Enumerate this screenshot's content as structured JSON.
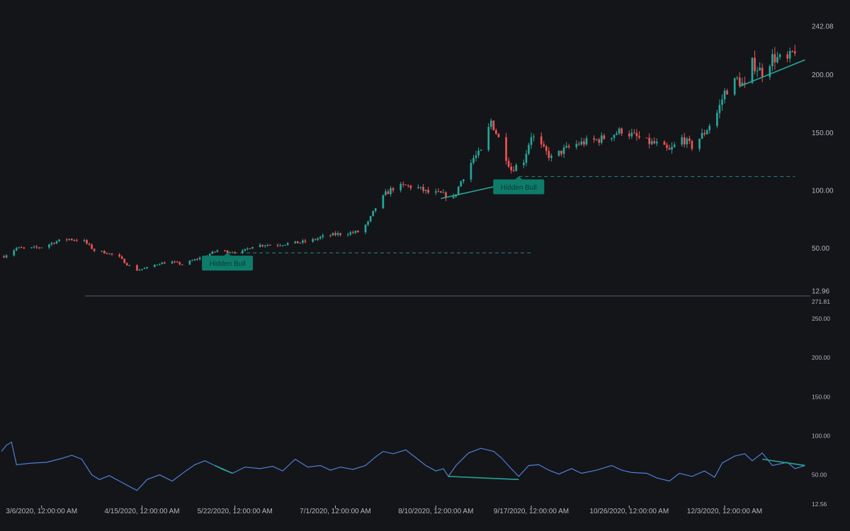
{
  "colors": {
    "background": "#141519",
    "up": "#26a69a",
    "down": "#ef5350",
    "oscillator": "#4f7fd6",
    "divergence": "#26a69a",
    "label_bg": "#0e7c6b",
    "label_text": "#0b3a33",
    "axis_text": "#b2b5be",
    "pane_divider": "#5d606b"
  },
  "chart_data": [
    {
      "type": "candlestick",
      "pane": "price",
      "y_axis_labels": [
        "242.08",
        "200.00",
        "150.00",
        "100.00",
        "50.00",
        "12.96"
      ],
      "ylim": [
        12.96,
        242.08
      ],
      "x_labels": [
        "3/6/2020, 12:00:00 AM",
        "4/15/2020, 12:00:00 AM",
        "5/22/2020, 12:00:00 AM",
        "7/1/2020, 12:00:00 AM",
        "8/10/2020, 12:00:00 AM",
        "9/17/2020, 12:00:00 AM",
        "10/26/2020, 12:00:00 AM",
        "12/3/2020, 12:00:00 AM"
      ],
      "close_path": [
        [
          "2020-02-20",
          43
        ],
        [
          "2020-02-25",
          50
        ],
        [
          "2020-03-02",
          50
        ],
        [
          "2020-03-06",
          51
        ],
        [
          "2020-03-12",
          56
        ],
        [
          "2020-03-17",
          58
        ],
        [
          "2020-03-23",
          56
        ],
        [
          "2020-03-27",
          48
        ],
        [
          "2020-04-01",
          46
        ],
        [
          "2020-04-06",
          42
        ],
        [
          "2020-04-09",
          36
        ],
        [
          "2020-04-13",
          31
        ],
        [
          "2020-04-17",
          33
        ],
        [
          "2020-04-22",
          37
        ],
        [
          "2020-04-27",
          38
        ],
        [
          "2020-05-01",
          36
        ],
        [
          "2020-05-06",
          40
        ],
        [
          "2020-05-11",
          44
        ],
        [
          "2020-05-15",
          48
        ],
        [
          "2020-05-20",
          47
        ],
        [
          "2020-05-25",
          47
        ],
        [
          "2020-05-29",
          52
        ],
        [
          "2020-06-03",
          53
        ],
        [
          "2020-06-08",
          53
        ],
        [
          "2020-06-12",
          54
        ],
        [
          "2020-06-17",
          55
        ],
        [
          "2020-06-22",
          57
        ],
        [
          "2020-06-26",
          60
        ],
        [
          "2020-07-01",
          62
        ],
        [
          "2020-07-06",
          63
        ],
        [
          "2020-07-10",
          64
        ],
        [
          "2020-07-14",
          72
        ],
        [
          "2020-07-17",
          85
        ],
        [
          "2020-07-21",
          97
        ],
        [
          "2020-07-24",
          102
        ],
        [
          "2020-07-29",
          104
        ],
        [
          "2020-08-03",
          102
        ],
        [
          "2020-08-07",
          98
        ],
        [
          "2020-08-12",
          97
        ],
        [
          "2020-08-17",
          93
        ],
        [
          "2020-08-20",
          108
        ],
        [
          "2020-08-25",
          128
        ],
        [
          "2020-08-28",
          133
        ],
        [
          "2020-09-01",
          160
        ],
        [
          "2020-09-04",
          145
        ],
        [
          "2020-09-09",
          118
        ],
        [
          "2020-09-14",
          126
        ],
        [
          "2020-09-17",
          148
        ],
        [
          "2020-09-22",
          135
        ],
        [
          "2020-09-25",
          128
        ],
        [
          "2020-09-30",
          135
        ],
        [
          "2020-10-05",
          140
        ],
        [
          "2020-10-09",
          142
        ],
        [
          "2020-10-14",
          144
        ],
        [
          "2020-10-19",
          148
        ],
        [
          "2020-10-23",
          152
        ],
        [
          "2020-10-28",
          147
        ],
        [
          "2020-11-02",
          142
        ],
        [
          "2020-11-06",
          140
        ],
        [
          "2020-11-11",
          134
        ],
        [
          "2020-11-16",
          145
        ],
        [
          "2020-11-20",
          138
        ],
        [
          "2020-11-25",
          150
        ],
        [
          "2020-11-30",
          167
        ],
        [
          "2020-12-03",
          185
        ],
        [
          "2020-12-08",
          196
        ],
        [
          "2020-12-11",
          190
        ],
        [
          "2020-12-14",
          210
        ],
        [
          "2020-12-18",
          202
        ],
        [
          "2020-12-22",
          215
        ],
        [
          "2020-12-28",
          212
        ],
        [
          "2020-12-31",
          222
        ]
      ],
      "annotations": [
        {
          "label": "Hidden Bull",
          "date": "2020-05-19",
          "value": 46
        },
        {
          "label": "Hidden Bull",
          "date": "2020-09-12",
          "value": 112
        }
      ],
      "support_levels": [
        {
          "value": 46,
          "from": "2020-05-19",
          "to": "2020-09-17"
        },
        {
          "value": 112,
          "from": "2020-09-12",
          "to": "2020-12-31"
        }
      ],
      "divergence_lines": [
        {
          "from": [
            "2020-08-12",
            93
          ],
          "to": [
            "2020-09-12",
            108
          ]
        },
        {
          "from": [
            "2020-12-09",
            190
          ],
          "to": [
            "2021-01-04",
            213
          ]
        }
      ]
    },
    {
      "type": "line",
      "pane": "oscillator",
      "y_axis_labels": [
        "271.81",
        "250.00",
        "200.00",
        "150.00",
        "100.00",
        "50.00",
        "12.56"
      ],
      "ylim": [
        12.56,
        271.81
      ],
      "series": [
        {
          "points": [
            [
              "2020-02-19",
              80
            ],
            [
              "2020-02-21",
              88
            ],
            [
              "2020-02-23",
              92
            ],
            [
              "2020-02-25",
              63
            ],
            [
              "2020-03-02",
              65
            ],
            [
              "2020-03-08",
              66
            ],
            [
              "2020-03-14",
              71
            ],
            [
              "2020-03-18",
              75
            ],
            [
              "2020-03-22",
              70
            ],
            [
              "2020-03-26",
              50
            ],
            [
              "2020-03-29",
              44
            ],
            [
              "2020-04-02",
              49
            ],
            [
              "2020-04-06",
              42
            ],
            [
              "2020-04-10",
              35
            ],
            [
              "2020-04-13",
              30
            ],
            [
              "2020-04-17",
              44
            ],
            [
              "2020-04-22",
              50
            ],
            [
              "2020-04-27",
              42
            ],
            [
              "2020-05-02",
              54
            ],
            [
              "2020-05-06",
              63
            ],
            [
              "2020-05-10",
              68
            ],
            [
              "2020-05-14",
              62
            ],
            [
              "2020-05-17",
              57
            ],
            [
              "2020-05-21",
              52
            ],
            [
              "2020-05-26",
              60
            ],
            [
              "2020-06-01",
              58
            ],
            [
              "2020-06-06",
              61
            ],
            [
              "2020-06-10",
              55
            ],
            [
              "2020-06-15",
              70
            ],
            [
              "2020-06-20",
              60
            ],
            [
              "2020-06-25",
              62
            ],
            [
              "2020-06-29",
              56
            ],
            [
              "2020-07-03",
              60
            ],
            [
              "2020-07-08",
              57
            ],
            [
              "2020-07-13",
              62
            ],
            [
              "2020-07-17",
              73
            ],
            [
              "2020-07-20",
              80
            ],
            [
              "2020-07-24",
              77
            ],
            [
              "2020-07-29",
              82
            ],
            [
              "2020-08-02",
              72
            ],
            [
              "2020-08-06",
              62
            ],
            [
              "2020-08-10",
              55
            ],
            [
              "2020-08-13",
              58
            ],
            [
              "2020-08-15",
              48
            ],
            [
              "2020-08-18",
              62
            ],
            [
              "2020-08-23",
              78
            ],
            [
              "2020-08-28",
              84
            ],
            [
              "2020-09-02",
              80
            ],
            [
              "2020-09-05",
              72
            ],
            [
              "2020-09-09",
              58
            ],
            [
              "2020-09-12",
              48
            ],
            [
              "2020-09-16",
              62
            ],
            [
              "2020-09-20",
              63
            ],
            [
              "2020-09-24",
              56
            ],
            [
              "2020-09-28",
              51
            ],
            [
              "2020-10-03",
              58
            ],
            [
              "2020-10-07",
              52
            ],
            [
              "2020-10-13",
              56
            ],
            [
              "2020-10-19",
              62
            ],
            [
              "2020-10-23",
              56
            ],
            [
              "2020-10-27",
              53
            ],
            [
              "2020-11-02",
              52
            ],
            [
              "2020-11-06",
              46
            ],
            [
              "2020-11-11",
              42
            ],
            [
              "2020-11-15",
              52
            ],
            [
              "2020-11-20",
              48
            ],
            [
              "2020-11-25",
              55
            ],
            [
              "2020-11-29",
              47
            ],
            [
              "2020-12-02",
              65
            ],
            [
              "2020-12-07",
              74
            ],
            [
              "2020-12-11",
              77
            ],
            [
              "2020-12-14",
              68
            ],
            [
              "2020-12-18",
              78
            ],
            [
              "2020-12-22",
              62
            ],
            [
              "2020-12-28",
              66
            ],
            [
              "2020-12-31",
              58
            ],
            [
              "2021-01-04",
              62
            ]
          ]
        }
      ],
      "divergence_lines": [
        {
          "from": [
            "2020-05-14",
            62
          ],
          "to": [
            "2020-05-21",
            52
          ]
        },
        {
          "from": [
            "2020-08-15",
            48
          ],
          "to": [
            "2020-09-12",
            44
          ]
        },
        {
          "from": [
            "2020-12-18",
            70
          ],
          "to": [
            "2021-01-04",
            62
          ]
        }
      ]
    }
  ]
}
